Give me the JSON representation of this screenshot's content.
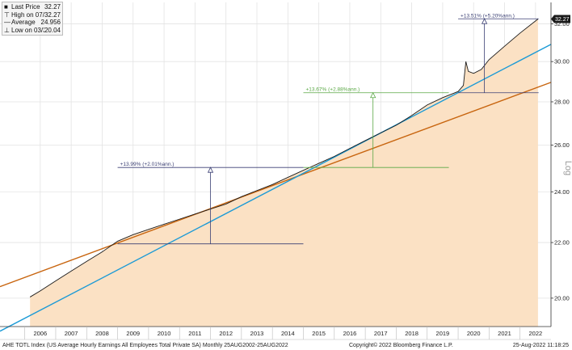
{
  "chart_data": {
    "type": "area",
    "scale": "log",
    "ylabel": "Log",
    "ylim": [
      19.05,
      33.2
    ],
    "x_range": [
      2005.2,
      2023.0
    ],
    "y_ticks": [
      "20.00",
      "22.00",
      "24.00",
      "26.00",
      "28.00",
      "30.00",
      "32.00"
    ],
    "y_tick_values": [
      20,
      22,
      24,
      26,
      28,
      30,
      32
    ],
    "x_ticks": [
      "2006",
      "2007",
      "2008",
      "2009",
      "2010",
      "2011",
      "2012",
      "2013",
      "2014",
      "2015",
      "2016",
      "2017",
      "2018",
      "2019",
      "2020",
      "2021",
      "2022"
    ],
    "colors": {
      "area_fill": "#fbe1c4",
      "area_line": "#1a1a1a",
      "trend_orange": "#c8650f",
      "trend_blue": "#1b9ad6",
      "annot_navy": "#3a3f73",
      "annot_green": "#5aa845",
      "last_price_badge": "#1a1a1a"
    },
    "series": [
      {
        "name": "Last Price",
        "x": [
          2006.17,
          2006.5,
          2007.0,
          2007.5,
          2008.0,
          2008.5,
          2009.0,
          2009.5,
          2010.0,
          2010.5,
          2011.0,
          2011.5,
          2012.0,
          2012.5,
          2013.0,
          2013.5,
          2014.0,
          2014.5,
          2015.0,
          2015.5,
          2016.0,
          2016.5,
          2017.0,
          2017.5,
          2018.0,
          2018.5,
          2019.0,
          2019.5,
          2020.0,
          2020.17,
          2020.25,
          2020.33,
          2020.5,
          2020.75,
          2021.0,
          2021.5,
          2022.0,
          2022.58
        ],
        "values": [
          20.04,
          20.25,
          20.6,
          20.95,
          21.3,
          21.65,
          22.05,
          22.3,
          22.5,
          22.7,
          22.9,
          23.1,
          23.3,
          23.5,
          23.8,
          24.05,
          24.3,
          24.6,
          24.9,
          25.2,
          25.5,
          25.85,
          26.2,
          26.55,
          26.9,
          27.35,
          27.85,
          28.2,
          28.5,
          28.8,
          30.0,
          29.5,
          29.4,
          29.6,
          30.1,
          30.8,
          31.5,
          32.27
        ]
      }
    ],
    "trend_lines": [
      {
        "color": "orange",
        "from": [
          2005.2,
          20.4
        ],
        "to": [
          2023.0,
          28.95
        ]
      },
      {
        "color": "blue",
        "from": [
          2005.2,
          18.9
        ],
        "to": [
          2023.0,
          30.9
        ]
      }
    ],
    "legend": {
      "items": [
        {
          "symbol": "■",
          "label": "Last Price",
          "value": "32.27"
        },
        {
          "symbol": "⊤",
          "label": "High on 07/31/22",
          "value": "32.27"
        },
        {
          "symbol": "—",
          "label": "Average",
          "value": "24.956"
        },
        {
          "symbol": "⊥",
          "label": "Low on 03/31/06",
          "value": "20.04"
        }
      ]
    },
    "last_price_label": "32.27",
    "annotations": [
      {
        "label": "+13.99% (+2.01%ann.)",
        "color": "navy",
        "x_start": 2009.0,
        "x_end": 2015.0,
        "x_arrow": 2012.0,
        "y_low": 21.95,
        "y_high": 25.02
      },
      {
        "label": "+13.67% (+2.88%ann.)",
        "color": "green",
        "x_start": 2015.0,
        "x_end": 2019.7,
        "x_arrow": 2017.25,
        "y_low": 25.02,
        "y_high": 28.44
      },
      {
        "label": "+13.51% (+5.20%ann.)",
        "color": "navy",
        "x_start": 2020.0,
        "x_end": 2022.6,
        "x_arrow": 2020.85,
        "y_low": 28.44,
        "y_high": 32.28
      }
    ]
  },
  "footer": {
    "left": "AHE TOTL Index (US Average Hourly Earnings All Employees Total Private SA)  Monthly 25AUG2002-25AUG2022",
    "center": "Copyright© 2022 Bloomberg Finance L.P.",
    "right": "25-Aug-2022 11:18:25"
  }
}
